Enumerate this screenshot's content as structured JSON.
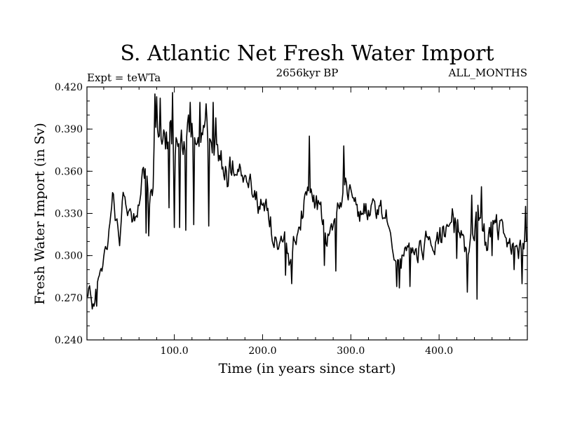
{
  "chart_data": {
    "type": "line",
    "title": "S. Atlantic Net Fresh Water Import",
    "subtitle_left": "Expt = teWTa",
    "subtitle_center": "2656kyr BP",
    "subtitle_right": "ALL_MONTHS",
    "xlabel": "Time (in years since start)",
    "ylabel": "Fresh Water Import (in Sv)",
    "xlim": [
      1,
      500
    ],
    "ylim": [
      0.24,
      0.42
    ],
    "x_ticks": [
      100,
      200,
      300,
      400
    ],
    "x_tick_labels": [
      "100.0",
      "200.0",
      "300.0",
      "400.0"
    ],
    "y_ticks": [
      0.24,
      0.27,
      0.3,
      0.33,
      0.36,
      0.39,
      0.42
    ],
    "y_tick_labels": [
      "0.240",
      "0.270",
      "0.300",
      "0.330",
      "0.360",
      "0.390",
      "0.420"
    ],
    "grid": false,
    "series": [
      {
        "name": "Net Fresh Water Import",
        "color": "#000000",
        "x_start": 1,
        "x_step": 1,
        "anchors": [
          [
            1,
            0.272
          ],
          [
            4,
            0.275
          ],
          [
            6,
            0.263
          ],
          [
            9,
            0.265
          ],
          [
            12,
            0.282
          ],
          [
            15,
            0.29
          ],
          [
            20,
            0.295
          ],
          [
            25,
            0.31
          ],
          [
            28,
            0.325
          ],
          [
            30,
            0.345
          ],
          [
            33,
            0.33
          ],
          [
            38,
            0.31
          ],
          [
            42,
            0.35
          ],
          [
            47,
            0.335
          ],
          [
            52,
            0.325
          ],
          [
            57,
            0.33
          ],
          [
            60,
            0.34
          ],
          [
            64,
            0.355
          ],
          [
            68,
            0.362
          ],
          [
            72,
            0.335
          ],
          [
            75,
            0.345
          ],
          [
            78,
            0.385
          ],
          [
            82,
            0.395
          ],
          [
            86,
            0.388
          ],
          [
            90,
            0.375
          ],
          [
            95,
            0.39
          ],
          [
            100,
            0.378
          ],
          [
            105,
            0.385
          ],
          [
            110,
            0.38
          ],
          [
            115,
            0.388
          ],
          [
            120,
            0.39
          ],
          [
            125,
            0.385
          ],
          [
            130,
            0.38
          ],
          [
            135,
            0.385
          ],
          [
            140,
            0.383
          ],
          [
            145,
            0.38
          ],
          [
            150,
            0.375
          ],
          [
            155,
            0.365
          ],
          [
            160,
            0.355
          ],
          [
            165,
            0.365
          ],
          [
            170,
            0.36
          ],
          [
            175,
            0.355
          ],
          [
            180,
            0.352
          ],
          [
            185,
            0.35
          ],
          [
            190,
            0.345
          ],
          [
            195,
            0.335
          ],
          [
            200,
            0.34
          ],
          [
            205,
            0.33
          ],
          [
            210,
            0.32
          ],
          [
            215,
            0.31
          ],
          [
            220,
            0.305
          ],
          [
            225,
            0.31
          ],
          [
            230,
            0.3
          ],
          [
            235,
            0.31
          ],
          [
            240,
            0.32
          ],
          [
            245,
            0.33
          ],
          [
            250,
            0.34
          ],
          [
            255,
            0.345
          ],
          [
            260,
            0.335
          ],
          [
            265,
            0.34
          ],
          [
            270,
            0.315
          ],
          [
            275,
            0.31
          ],
          [
            280,
            0.325
          ],
          [
            285,
            0.335
          ],
          [
            290,
            0.34
          ],
          [
            295,
            0.35
          ],
          [
            300,
            0.345
          ],
          [
            305,
            0.34
          ],
          [
            310,
            0.33
          ],
          [
            315,
            0.335
          ],
          [
            320,
            0.33
          ],
          [
            325,
            0.335
          ],
          [
            330,
            0.33
          ],
          [
            335,
            0.332
          ],
          [
            340,
            0.328
          ],
          [
            345,
            0.32
          ],
          [
            350,
            0.3
          ],
          [
            355,
            0.29
          ],
          [
            360,
            0.3
          ],
          [
            365,
            0.315
          ],
          [
            370,
            0.31
          ],
          [
            375,
            0.305
          ],
          [
            380,
            0.3
          ],
          [
            385,
            0.31
          ],
          [
            390,
            0.305
          ],
          [
            395,
            0.31
          ],
          [
            400,
            0.31
          ],
          [
            405,
            0.315
          ],
          [
            410,
            0.32
          ],
          [
            415,
            0.325
          ],
          [
            420,
            0.32
          ],
          [
            425,
            0.315
          ],
          [
            430,
            0.31
          ],
          [
            435,
            0.305
          ],
          [
            440,
            0.32
          ],
          [
            445,
            0.325
          ],
          [
            450,
            0.315
          ],
          [
            455,
            0.31
          ],
          [
            460,
            0.318
          ],
          [
            465,
            0.32
          ],
          [
            470,
            0.315
          ],
          [
            475,
            0.31
          ],
          [
            480,
            0.305
          ],
          [
            485,
            0.31
          ],
          [
            490,
            0.3
          ],
          [
            495,
            0.31
          ],
          [
            500,
            0.315
          ]
        ],
        "noise_amplitude": [
          [
            1,
            0.006
          ],
          [
            70,
            0.01
          ],
          [
            80,
            0.016
          ],
          [
            150,
            0.014
          ],
          [
            200,
            0.011
          ],
          [
            260,
            0.012
          ],
          [
            300,
            0.01
          ],
          [
            350,
            0.011
          ],
          [
            430,
            0.014
          ],
          [
            500,
            0.012
          ]
        ],
        "spikes": [
          [
            7,
            0.262
          ],
          [
            12,
            0.264
          ],
          [
            38,
            0.307
          ],
          [
            68,
            0.316
          ],
          [
            71,
            0.314
          ],
          [
            78,
            0.415
          ],
          [
            80,
            0.413
          ],
          [
            84,
            0.412
          ],
          [
            94,
            0.334
          ],
          [
            98,
            0.416
          ],
          [
            100,
            0.32
          ],
          [
            106,
            0.32
          ],
          [
            113,
            0.318
          ],
          [
            118,
            0.409
          ],
          [
            122,
            0.322
          ],
          [
            129,
            0.409
          ],
          [
            136,
            0.408
          ],
          [
            139,
            0.321
          ],
          [
            144,
            0.409
          ],
          [
            147,
            0.398
          ],
          [
            226,
            0.286
          ],
          [
            233,
            0.28
          ],
          [
            253,
            0.385
          ],
          [
            270,
            0.293
          ],
          [
            283,
            0.289
          ],
          [
            292,
            0.378
          ],
          [
            352,
            0.278
          ],
          [
            355,
            0.277
          ],
          [
            367,
            0.278
          ],
          [
            420,
            0.298
          ],
          [
            432,
            0.274
          ],
          [
            437,
            0.343
          ],
          [
            443,
            0.269
          ],
          [
            448,
            0.349
          ],
          [
            460,
            0.3
          ],
          [
            485,
            0.29
          ],
          [
            494,
            0.28
          ],
          [
            498,
            0.335
          ]
        ]
      }
    ]
  }
}
